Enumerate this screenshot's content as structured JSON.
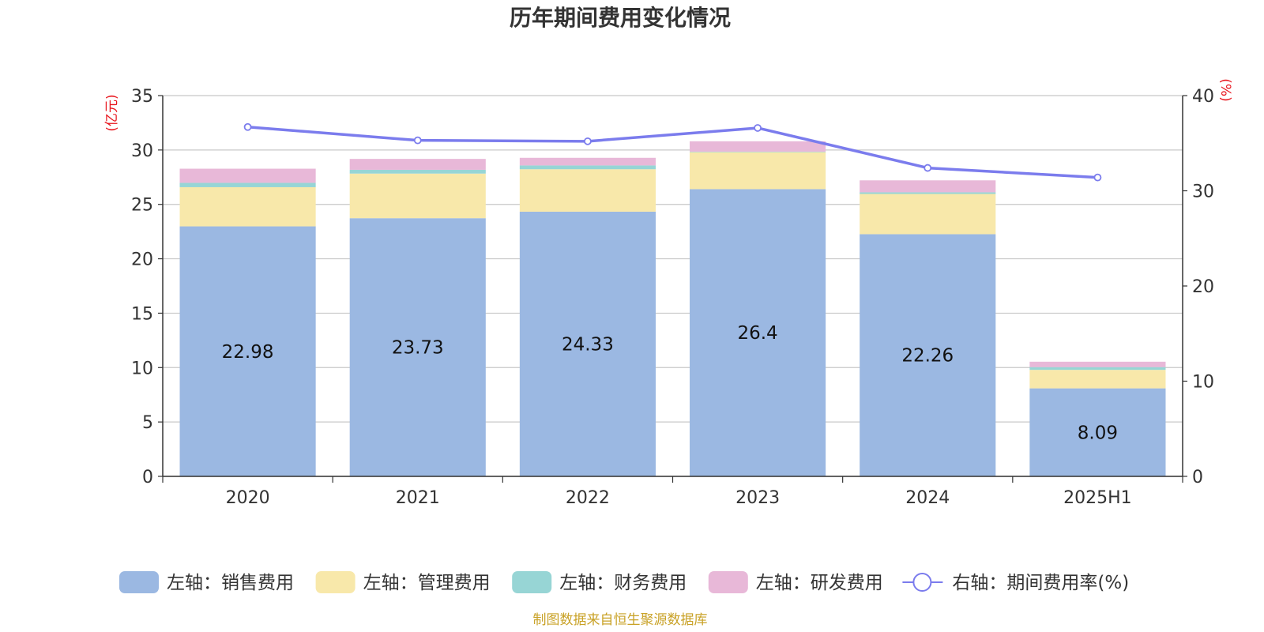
{
  "chart_data": {
    "type": "bar",
    "title": "历年期间费用变化情况",
    "categories": [
      "2020",
      "2021",
      "2022",
      "2023",
      "2024",
      "2025H1"
    ],
    "left_axis": {
      "unit": "(亿元)",
      "ylim": [
        0,
        35
      ],
      "ticks": [
        "0",
        "5",
        "10",
        "15",
        "20",
        "25",
        "30",
        "35"
      ]
    },
    "right_axis": {
      "unit": "(%)",
      "ylim": [
        0,
        40
      ],
      "ticks": [
        "0",
        "10",
        "20",
        "30",
        "40"
      ]
    },
    "grid": true,
    "legend_position": "bottom",
    "series": [
      {
        "name": "左轴：销售费用",
        "kind": "bar",
        "axis": "left",
        "color": "#9bb8e2",
        "values": [
          22.98,
          23.73,
          24.33,
          26.4,
          22.26,
          8.09
        ],
        "labels": [
          "22.98",
          "23.73",
          "24.33",
          "26.4",
          "22.26",
          "8.09"
        ]
      },
      {
        "name": "左轴：管理费用",
        "kind": "bar",
        "axis": "left",
        "color": "#f8e8aa",
        "values": [
          3.6,
          4.1,
          3.9,
          3.4,
          3.7,
          1.7
        ]
      },
      {
        "name": "左轴：财务费用",
        "kind": "bar",
        "axis": "left",
        "color": "#97d5d5",
        "values": [
          0.4,
          0.35,
          0.35,
          0.05,
          0.15,
          0.25
        ]
      },
      {
        "name": "左轴：研发费用",
        "kind": "bar",
        "axis": "left",
        "color": "#e8b8d8",
        "values": [
          1.3,
          1.0,
          0.7,
          0.95,
          1.1,
          0.5
        ]
      },
      {
        "name": "右轴：期间费用率(%)",
        "kind": "line",
        "axis": "right",
        "color": "#7b7ced",
        "values": [
          36.7,
          35.3,
          35.2,
          36.6,
          32.4,
          31.4
        ]
      }
    ],
    "source": "制图数据来自恒生聚源数据库"
  }
}
